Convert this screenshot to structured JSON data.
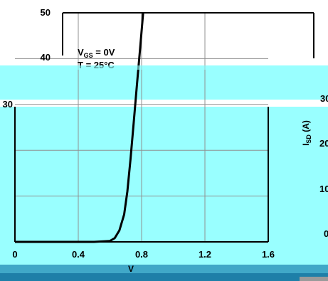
{
  "colors": {
    "page_background": "#ffffff",
    "cyan_band": "#99ffff",
    "gridline": "#909090",
    "curve": "#000000",
    "bottom_band_light": "#40a8c8",
    "bottom_band_dark": "#1e7fa8",
    "corner_block": "#9a9a9a"
  },
  "annotations": {
    "vgs": {
      "main": "V",
      "sub": "GS",
      "rest": " = 0V"
    },
    "temp": {
      "main": "T",
      "rest": " = 25°C"
    }
  },
  "chart_data": [
    {
      "type": "line",
      "xlabel": "V",
      "ylabel": "",
      "xlim": [
        0,
        1.6
      ],
      "ylim": [
        0,
        50
      ],
      "x_ticks": [
        0,
        0.4,
        0.8,
        1.2,
        1.6
      ],
      "x_tick_labels": [
        "0",
        "0.4",
        "0.8",
        "1.2",
        "1.6"
      ],
      "y_ticks": [
        0,
        10,
        20,
        30,
        40,
        50
      ],
      "y_tick_labels": [
        "",
        "",
        "",
        "30",
        "40",
        "50"
      ],
      "grid": true,
      "series": [
        {
          "points": [
            [
              0.0,
              0.0
            ],
            [
              0.5,
              0.0
            ],
            [
              0.6,
              0.2
            ],
            [
              0.63,
              0.8
            ],
            [
              0.66,
              2.5
            ],
            [
              0.69,
              6.0
            ],
            [
              0.71,
              11.0
            ],
            [
              0.73,
              18.0
            ],
            [
              0.75,
              26.0
            ],
            [
              0.77,
              34.0
            ],
            [
              0.79,
              42.0
            ],
            [
              0.81,
              50.0
            ]
          ]
        }
      ]
    },
    {
      "type": "line",
      "ylabel": "I_SD (A)",
      "ylabel_main": "I",
      "ylabel_sub": "SD",
      "ylabel_rest": " (A)",
      "y_tick_labels_right": [
        "0",
        "10",
        "20",
        "30"
      ]
    }
  ]
}
